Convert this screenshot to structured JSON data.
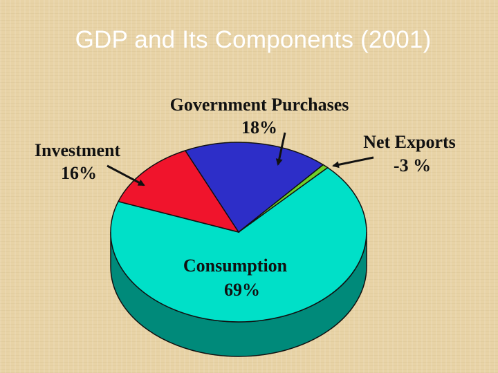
{
  "title": "GDP and Its Components (2001)",
  "chart_data": {
    "type": "pie",
    "title": "GDP and Its Components (2001)",
    "slices": [
      {
        "name": "Consumption",
        "label": "Consumption",
        "value_label": "69%",
        "value": 69,
        "color": "#00e0c8",
        "side_color": "#008a7a"
      },
      {
        "name": "Investment",
        "label": "Investment",
        "value_label": "16%",
        "value": 16,
        "color": "#f0142c",
        "side_color": "#8a0a18"
      },
      {
        "name": "Government Purchases",
        "label": "Government Purchases",
        "value_label": "18%",
        "value": 18,
        "color": "#2d2ec8",
        "side_color": "#1a1a7a"
      },
      {
        "name": "Net Exports",
        "label": "Net Exports",
        "value_label": "-3 %",
        "value": -3,
        "color": "#6fcf2a",
        "side_color": "#3d7a16"
      }
    ]
  }
}
